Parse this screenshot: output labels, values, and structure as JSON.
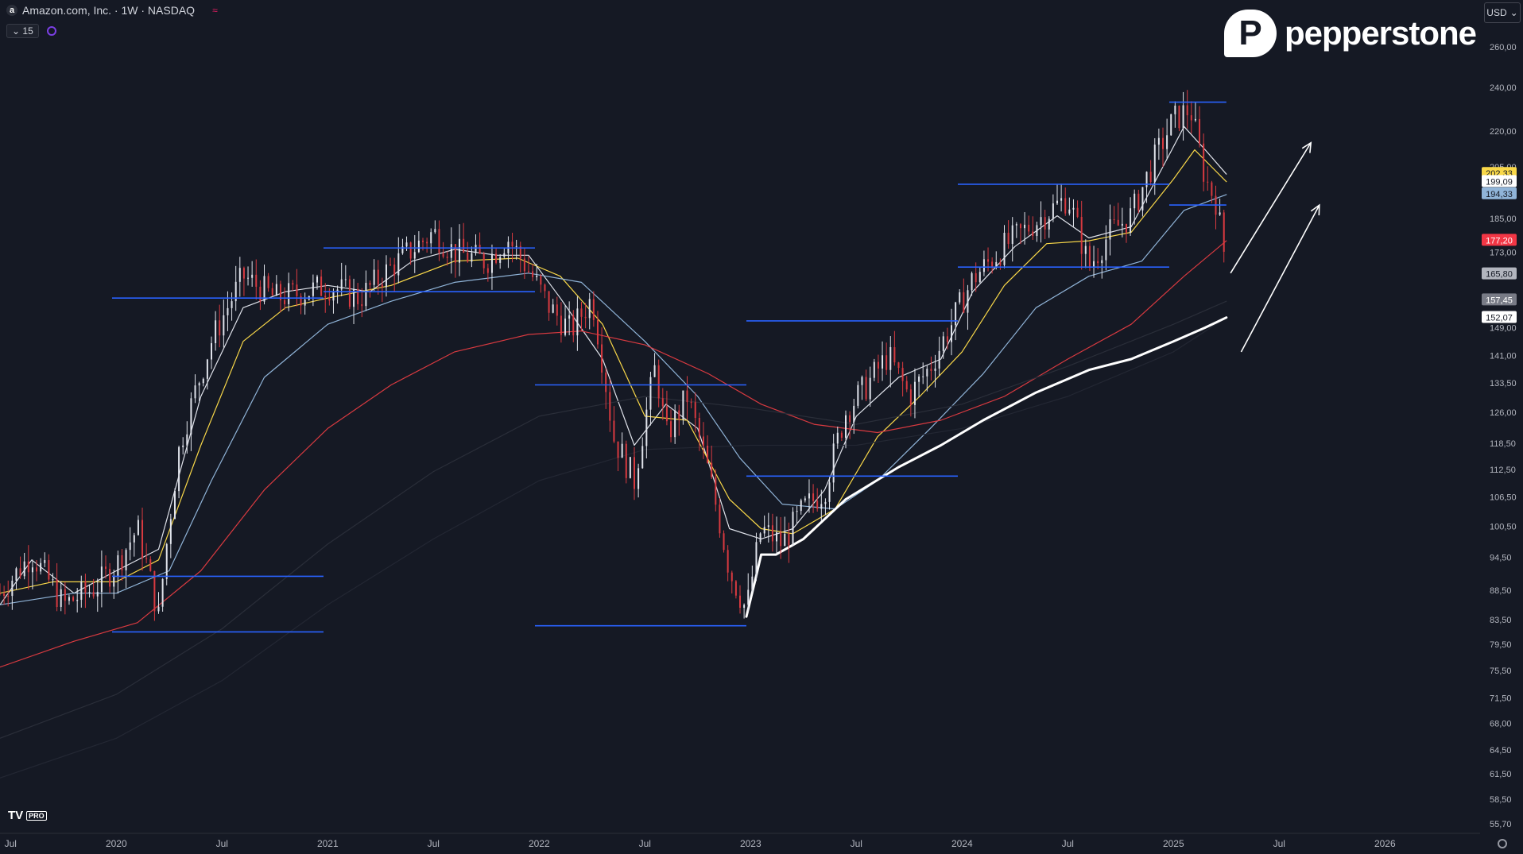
{
  "header": {
    "symbol_title": "Amazon.com, Inc. · 1W · NASDAQ",
    "indicators_count": "15",
    "logo_letter": "a"
  },
  "brand": {
    "name": "pepperstone",
    "mark": "P"
  },
  "currency": {
    "label": "USD"
  },
  "footer": {
    "tv_logo": "TV",
    "tv_badge": "PRO"
  },
  "chart_data": {
    "type": "candlestick",
    "timeframe": "1W",
    "y_scale": "log",
    "y_ticks": [
      "260,00",
      "240,00",
      "220,00",
      "205,00",
      "185,00",
      "173,00",
      "157,45",
      "149,00",
      "141,00",
      "133,50",
      "126,00",
      "118,50",
      "112,50",
      "106,50",
      "100,50",
      "94,50",
      "88,50",
      "83,50",
      "79,50",
      "75,50",
      "71,50",
      "68,00",
      "64,50",
      "61,50",
      "58,50",
      "55,70"
    ],
    "x_ticks": [
      {
        "label": "Jul",
        "x": 2019.5
      },
      {
        "label": "2020",
        "x": 2020.0
      },
      {
        "label": "Jul",
        "x": 2020.5
      },
      {
        "label": "2021",
        "x": 2021.0
      },
      {
        "label": "Jul",
        "x": 2021.5
      },
      {
        "label": "2022",
        "x": 2022.0
      },
      {
        "label": "Jul",
        "x": 2022.5
      },
      {
        "label": "2023",
        "x": 2023.0
      },
      {
        "label": "Jul",
        "x": 2023.5
      },
      {
        "label": "2024",
        "x": 2024.0
      },
      {
        "label": "Jul",
        "x": 2024.5
      },
      {
        "label": "2025",
        "x": 2025.0
      },
      {
        "label": "Jul",
        "x": 2025.5
      },
      {
        "label": "2026",
        "x": 2026.0
      }
    ],
    "x_range": [
      2019.45,
      2026.45
    ],
    "price_points": [
      [
        2019.45,
        88
      ],
      [
        2019.6,
        95
      ],
      [
        2019.75,
        86
      ],
      [
        2019.9,
        89
      ],
      [
        2020.0,
        93
      ],
      [
        2020.1,
        100
      ],
      [
        2020.2,
        84
      ],
      [
        2020.3,
        118
      ],
      [
        2020.45,
        145
      ],
      [
        2020.6,
        165
      ],
      [
        2020.75,
        158
      ],
      [
        2020.9,
        160
      ],
      [
        2021.0,
        162
      ],
      [
        2021.15,
        158
      ],
      [
        2021.3,
        168
      ],
      [
        2021.5,
        180
      ],
      [
        2021.6,
        173
      ],
      [
        2021.75,
        170
      ],
      [
        2021.85,
        178
      ],
      [
        2021.95,
        167
      ],
      [
        2022.05,
        155
      ],
      [
        2022.15,
        148
      ],
      [
        2022.25,
        158
      ],
      [
        2022.35,
        120
      ],
      [
        2022.45,
        110
      ],
      [
        2022.55,
        138
      ],
      [
        2022.6,
        120
      ],
      [
        2022.7,
        130
      ],
      [
        2022.8,
        112
      ],
      [
        2022.9,
        92
      ],
      [
        2022.98,
        85
      ],
      [
        2023.05,
        100
      ],
      [
        2023.15,
        97
      ],
      [
        2023.25,
        104
      ],
      [
        2023.35,
        108
      ],
      [
        2023.45,
        126
      ],
      [
        2023.55,
        133
      ],
      [
        2023.65,
        141
      ],
      [
        2023.75,
        130
      ],
      [
        2023.85,
        138
      ],
      [
        2023.95,
        150
      ],
      [
        2024.05,
        164
      ],
      [
        2024.2,
        175
      ],
      [
        2024.35,
        184
      ],
      [
        2024.5,
        193
      ],
      [
        2024.6,
        168
      ],
      [
        2024.7,
        180
      ],
      [
        2024.8,
        186
      ],
      [
        2024.9,
        206
      ],
      [
        2025.0,
        225
      ],
      [
        2025.08,
        230
      ],
      [
        2025.15,
        200
      ],
      [
        2025.2,
        192
      ],
      [
        2025.25,
        168
      ]
    ],
    "series": [
      {
        "color": "#e0e3eb",
        "values": [
          [
            2019.45,
            86
          ],
          [
            2019.6,
            94
          ],
          [
            2019.8,
            88
          ],
          [
            2020.0,
            92
          ],
          [
            2020.2,
            96
          ],
          [
            2020.4,
            130
          ],
          [
            2020.6,
            155
          ],
          [
            2020.8,
            160
          ],
          [
            2021.0,
            162
          ],
          [
            2021.2,
            160
          ],
          [
            2021.4,
            170
          ],
          [
            2021.6,
            174
          ],
          [
            2021.8,
            172
          ],
          [
            2021.95,
            172
          ],
          [
            2022.1,
            158
          ],
          [
            2022.3,
            140
          ],
          [
            2022.45,
            118
          ],
          [
            2022.6,
            128
          ],
          [
            2022.75,
            122
          ],
          [
            2022.9,
            100
          ],
          [
            2023.05,
            98
          ],
          [
            2023.2,
            100
          ],
          [
            2023.35,
            108
          ],
          [
            2023.5,
            125
          ],
          [
            2023.7,
            135
          ],
          [
            2023.9,
            140
          ],
          [
            2024.05,
            160
          ],
          [
            2024.25,
            175
          ],
          [
            2024.45,
            186
          ],
          [
            2024.6,
            178
          ],
          [
            2024.8,
            182
          ],
          [
            2024.95,
            205
          ],
          [
            2025.05,
            222
          ],
          [
            2025.15,
            212
          ],
          [
            2025.25,
            202
          ]
        ]
      },
      {
        "color": "#f9d849",
        "values": [
          [
            2019.45,
            88
          ],
          [
            2019.7,
            90
          ],
          [
            2020.0,
            90
          ],
          [
            2020.2,
            94
          ],
          [
            2020.4,
            118
          ],
          [
            2020.6,
            145
          ],
          [
            2020.8,
            155
          ],
          [
            2021.0,
            158
          ],
          [
            2021.3,
            162
          ],
          [
            2021.6,
            170
          ],
          [
            2021.9,
            171
          ],
          [
            2022.1,
            165
          ],
          [
            2022.3,
            150
          ],
          [
            2022.5,
            125
          ],
          [
            2022.7,
            124
          ],
          [
            2022.9,
            106
          ],
          [
            2023.05,
            100
          ],
          [
            2023.2,
            99
          ],
          [
            2023.4,
            104
          ],
          [
            2023.6,
            120
          ],
          [
            2023.8,
            130
          ],
          [
            2024.0,
            142
          ],
          [
            2024.2,
            162
          ],
          [
            2024.4,
            176
          ],
          [
            2024.6,
            177
          ],
          [
            2024.8,
            180
          ],
          [
            2025.0,
            200
          ],
          [
            2025.1,
            212
          ],
          [
            2025.25,
            199
          ]
        ]
      },
      {
        "color": "#90b4d8",
        "values": [
          [
            2019.45,
            86
          ],
          [
            2019.8,
            88
          ],
          [
            2020.0,
            88
          ],
          [
            2020.25,
            92
          ],
          [
            2020.45,
            110
          ],
          [
            2020.7,
            135
          ],
          [
            2021.0,
            150
          ],
          [
            2021.3,
            157
          ],
          [
            2021.6,
            163
          ],
          [
            2021.95,
            166
          ],
          [
            2022.2,
            163
          ],
          [
            2022.5,
            145
          ],
          [
            2022.75,
            130
          ],
          [
            2022.95,
            115
          ],
          [
            2023.15,
            105
          ],
          [
            2023.4,
            104
          ],
          [
            2023.6,
            110
          ],
          [
            2023.85,
            122
          ],
          [
            2024.1,
            136
          ],
          [
            2024.35,
            155
          ],
          [
            2024.6,
            165
          ],
          [
            2024.85,
            170
          ],
          [
            2025.05,
            188
          ],
          [
            2025.25,
            194
          ]
        ]
      },
      {
        "color": "#d93a40",
        "values": [
          [
            2019.45,
            76
          ],
          [
            2019.8,
            80
          ],
          [
            2020.1,
            83
          ],
          [
            2020.4,
            92
          ],
          [
            2020.7,
            108
          ],
          [
            2021.0,
            122
          ],
          [
            2021.3,
            133
          ],
          [
            2021.6,
            142
          ],
          [
            2021.95,
            147
          ],
          [
            2022.2,
            148
          ],
          [
            2022.5,
            144
          ],
          [
            2022.8,
            136
          ],
          [
            2023.05,
            128
          ],
          [
            2023.3,
            123
          ],
          [
            2023.6,
            121
          ],
          [
            2023.9,
            124
          ],
          [
            2024.2,
            130
          ],
          [
            2024.5,
            140
          ],
          [
            2024.8,
            150
          ],
          [
            2025.05,
            165
          ],
          [
            2025.25,
            177
          ]
        ]
      },
      {
        "color": "#2a2e39",
        "values": [
          [
            2019.45,
            66
          ],
          [
            2020.0,
            72
          ],
          [
            2020.5,
            82
          ],
          [
            2021.0,
            97
          ],
          [
            2021.5,
            112
          ],
          [
            2022.0,
            125
          ],
          [
            2022.5,
            130
          ],
          [
            2023.0,
            127
          ],
          [
            2023.5,
            123
          ],
          [
            2024.0,
            128
          ],
          [
            2024.5,
            138
          ],
          [
            2025.0,
            150
          ],
          [
            2025.25,
            157
          ]
        ]
      },
      {
        "color": "#232733",
        "values": [
          [
            2019.45,
            61
          ],
          [
            2020.0,
            66
          ],
          [
            2020.5,
            74
          ],
          [
            2021.0,
            86
          ],
          [
            2021.5,
            98
          ],
          [
            2022.0,
            110
          ],
          [
            2022.5,
            117
          ],
          [
            2023.0,
            118
          ],
          [
            2023.5,
            118
          ],
          [
            2024.0,
            122
          ],
          [
            2024.5,
            130
          ],
          [
            2025.0,
            142
          ],
          [
            2025.25,
            152
          ]
        ]
      },
      {
        "color": "#ffffff",
        "width": 3,
        "values": [
          [
            2022.98,
            84
          ],
          [
            2023.02,
            90
          ],
          [
            2023.05,
            95
          ],
          [
            2023.12,
            95
          ],
          [
            2023.25,
            98
          ],
          [
            2023.45,
            106
          ],
          [
            2023.7,
            113
          ],
          [
            2023.9,
            118
          ],
          [
            2024.1,
            124
          ],
          [
            2024.35,
            131
          ],
          [
            2024.6,
            137
          ],
          [
            2024.8,
            140
          ],
          [
            2025.0,
            145
          ],
          [
            2025.15,
            149
          ],
          [
            2025.25,
            152
          ]
        ]
      }
    ],
    "levels": [
      {
        "price": 91,
        "x0": 2019.98,
        "x1": 2020.98
      },
      {
        "price": 81.5,
        "x0": 2019.98,
        "x1": 2020.98
      },
      {
        "price": 158,
        "x0": 2019.98,
        "x1": 2020.98
      },
      {
        "price": 174.5,
        "x0": 2020.98,
        "x1": 2021.98
      },
      {
        "price": 160,
        "x0": 2020.98,
        "x1": 2021.98
      },
      {
        "price": 133,
        "x0": 2021.98,
        "x1": 2022.98
      },
      {
        "price": 82.5,
        "x0": 2021.98,
        "x1": 2022.98
      },
      {
        "price": 151,
        "x0": 2022.98,
        "x1": 2023.98
      },
      {
        "price": 111,
        "x0": 2022.98,
        "x1": 2023.98
      },
      {
        "price": 198,
        "x0": 2023.98,
        "x1": 2024.98
      },
      {
        "price": 168,
        "x0": 2023.98,
        "x1": 2024.98
      },
      {
        "price": 233,
        "x0": 2024.98,
        "x1": 2025.25
      },
      {
        "price": 190,
        "x0": 2024.98,
        "x1": 2025.25
      }
    ],
    "arrows": [
      {
        "from": [
          2025.27,
          166
        ],
        "to": [
          2025.65,
          215
        ]
      },
      {
        "from": [
          2025.32,
          142
        ],
        "to": [
          2025.69,
          190
        ]
      }
    ],
    "price_labels": [
      {
        "text": "202,33",
        "price": 202.33,
        "bg": "#f9d849",
        "fg": "#151924"
      },
      {
        "text": "199,09",
        "price": 199.09,
        "bg": "#ffffff",
        "fg": "#151924"
      },
      {
        "text": "194,33",
        "price": 194.33,
        "bg": "#90b4d8",
        "fg": "#151924"
      },
      {
        "text": "177,20",
        "price": 177.2,
        "bg": "#f23645",
        "fg": "#ffffff"
      },
      {
        "text": "165,80",
        "price": 165.8,
        "bg": "#b2b5be",
        "fg": "#151924"
      },
      {
        "text": "157,45",
        "price": 157.45,
        "bg": "#787b86",
        "fg": "#ffffff"
      },
      {
        "text": "152,07",
        "price": 152.07,
        "bg": "#ffffff",
        "fg": "#151924"
      }
    ]
  }
}
